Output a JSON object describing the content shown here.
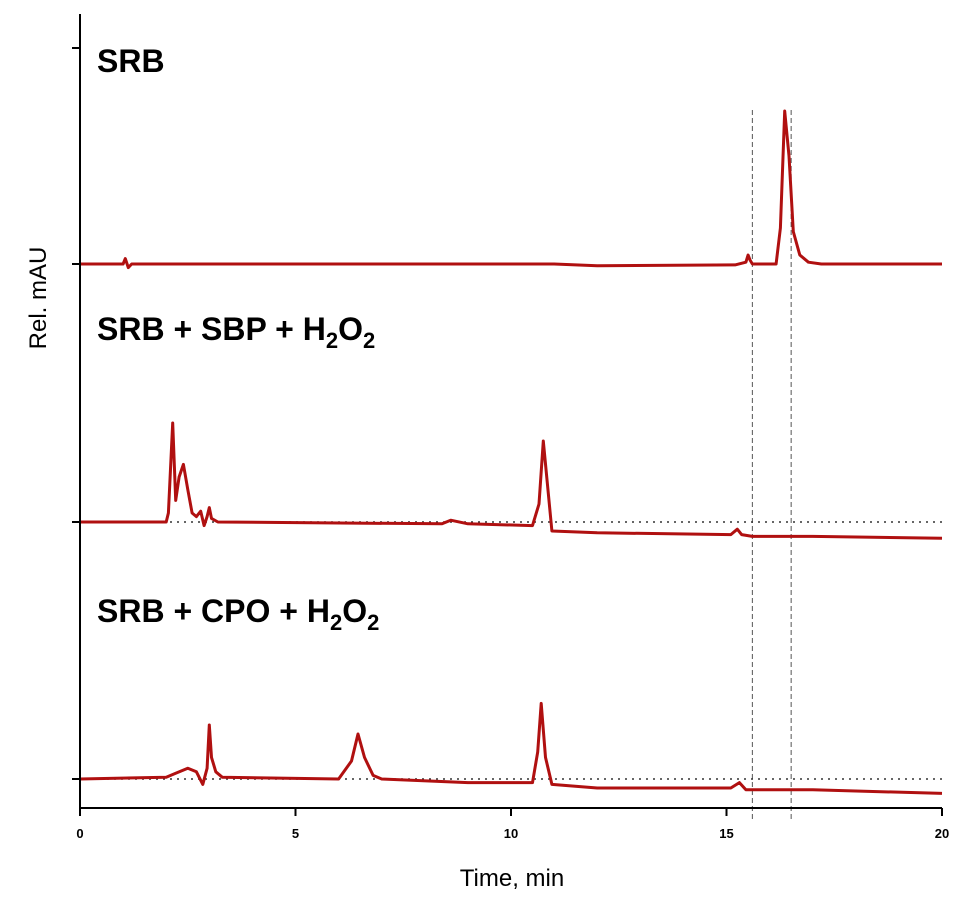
{
  "chart_data": {
    "type": "line",
    "title": "",
    "xlabel": "Time, min",
    "ylabel": "Rel. mAU",
    "xlim": [
      0,
      20
    ],
    "x_ticks": [
      "0",
      "5",
      "10",
      "15",
      "20"
    ],
    "grid": false,
    "legend": "none",
    "colors": {
      "trace": "#b01010",
      "baseline_dotted": "#333333",
      "reference_dashed": "#555555"
    },
    "reference_lines_min": [
      15.6,
      16.5
    ],
    "series": [
      {
        "label_main": "SRB",
        "label_tail": "",
        "baseline": 0,
        "points": [
          [
            0,
            0
          ],
          [
            1.0,
            0
          ],
          [
            1.05,
            0.03
          ],
          [
            1.12,
            -0.02
          ],
          [
            1.2,
            0
          ],
          [
            11.0,
            0
          ],
          [
            12.0,
            -0.01
          ],
          [
            15.2,
            -0.005
          ],
          [
            15.45,
            0.01
          ],
          [
            15.5,
            0.05
          ],
          [
            15.55,
            0.02
          ],
          [
            15.6,
            0
          ],
          [
            16.15,
            0
          ],
          [
            16.25,
            0.2
          ],
          [
            16.35,
            0.85
          ],
          [
            16.45,
            0.6
          ],
          [
            16.55,
            0.18
          ],
          [
            16.7,
            0.05
          ],
          [
            16.9,
            0.01
          ],
          [
            17.2,
            0
          ],
          [
            20,
            0
          ]
        ]
      },
      {
        "label_main": "SRB + SBP + H",
        "label_tail": "O",
        "baseline": 0,
        "points": [
          [
            0,
            0
          ],
          [
            2.0,
            0
          ],
          [
            2.05,
            0.05
          ],
          [
            2.15,
            0.55
          ],
          [
            2.22,
            0.12
          ],
          [
            2.3,
            0.25
          ],
          [
            2.4,
            0.32
          ],
          [
            2.5,
            0.18
          ],
          [
            2.6,
            0.05
          ],
          [
            2.7,
            0.03
          ],
          [
            2.8,
            0.06
          ],
          [
            2.88,
            -0.02
          ],
          [
            2.95,
            0.03
          ],
          [
            3.0,
            0.08
          ],
          [
            3.05,
            0.02
          ],
          [
            3.2,
            0
          ],
          [
            8.4,
            -0.01
          ],
          [
            8.6,
            0.01
          ],
          [
            9.0,
            -0.01
          ],
          [
            10.5,
            -0.02
          ],
          [
            10.65,
            0.1
          ],
          [
            10.75,
            0.45
          ],
          [
            10.85,
            0.2
          ],
          [
            10.95,
            -0.05
          ],
          [
            12.0,
            -0.06
          ],
          [
            15.1,
            -0.07
          ],
          [
            15.25,
            -0.04
          ],
          [
            15.35,
            -0.07
          ],
          [
            15.6,
            -0.08
          ],
          [
            17.0,
            -0.08
          ],
          [
            20,
            -0.09
          ]
        ]
      },
      {
        "label_main": "SRB + CPO + H",
        "label_tail": "O",
        "baseline": 0,
        "points": [
          [
            0,
            0
          ],
          [
            2.0,
            0.01
          ],
          [
            2.2,
            0.03
          ],
          [
            2.5,
            0.06
          ],
          [
            2.7,
            0.04
          ],
          [
            2.85,
            -0.03
          ],
          [
            2.95,
            0.06
          ],
          [
            3.0,
            0.3
          ],
          [
            3.05,
            0.12
          ],
          [
            3.15,
            0.04
          ],
          [
            3.3,
            0.01
          ],
          [
            6.0,
            0
          ],
          [
            6.3,
            0.1
          ],
          [
            6.45,
            0.25
          ],
          [
            6.6,
            0.12
          ],
          [
            6.8,
            0.02
          ],
          [
            7.0,
            0
          ],
          [
            9.0,
            -0.02
          ],
          [
            10.5,
            -0.02
          ],
          [
            10.62,
            0.15
          ],
          [
            10.7,
            0.42
          ],
          [
            10.8,
            0.12
          ],
          [
            10.95,
            -0.03
          ],
          [
            12.0,
            -0.05
          ],
          [
            15.1,
            -0.05
          ],
          [
            15.3,
            -0.02
          ],
          [
            15.45,
            -0.06
          ],
          [
            17.0,
            -0.06
          ],
          [
            20,
            -0.08
          ]
        ]
      }
    ]
  }
}
